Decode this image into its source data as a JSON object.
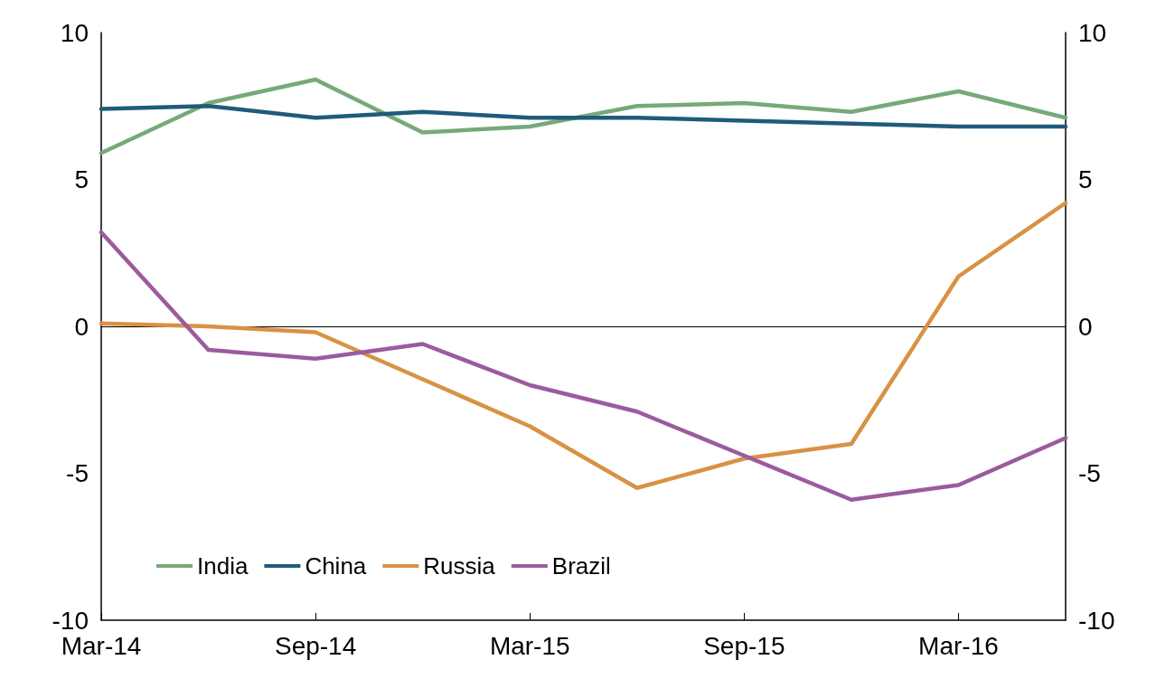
{
  "chart_data": {
    "type": "line",
    "categories": [
      "Mar-14",
      null,
      "Sep-14",
      null,
      "Mar-15",
      null,
      "Sep-15",
      null,
      "Mar-16",
      null
    ],
    "series": [
      {
        "name": "India",
        "color": "#76a97a",
        "values": [
          5.9,
          7.6,
          8.4,
          6.6,
          6.8,
          7.5,
          7.6,
          7.3,
          8.0,
          7.1
        ]
      },
      {
        "name": "China",
        "color": "#1f5b7a",
        "values": [
          7.4,
          7.5,
          7.1,
          7.3,
          7.1,
          7.1,
          7.0,
          6.9,
          6.8,
          6.8
        ]
      },
      {
        "name": "Russia",
        "color": "#d89244",
        "values": [
          0.1,
          0.0,
          -0.2,
          -1.8,
          -3.4,
          -5.5,
          -4.5,
          -4.0,
          1.7,
          4.2
        ]
      },
      {
        "name": "Brazil",
        "color": "#9b5b9e",
        "values": [
          3.2,
          -0.8,
          -1.1,
          -0.6,
          -2.0,
          -2.9,
          -4.4,
          -5.9,
          -5.4,
          -3.8
        ]
      }
    ],
    "ylim": [
      -10,
      10
    ],
    "yticks": [
      -10,
      -5,
      0,
      5,
      10
    ],
    "y2lim": [
      -10,
      10
    ],
    "y2ticks": [
      -10,
      -5,
      0,
      5,
      10
    ],
    "ref_lines": [
      {
        "axis": "y",
        "value": 0,
        "color": "#000000"
      }
    ],
    "grid": false,
    "legend": "bottom left",
    "marker": "none",
    "line_style": "solid"
  }
}
